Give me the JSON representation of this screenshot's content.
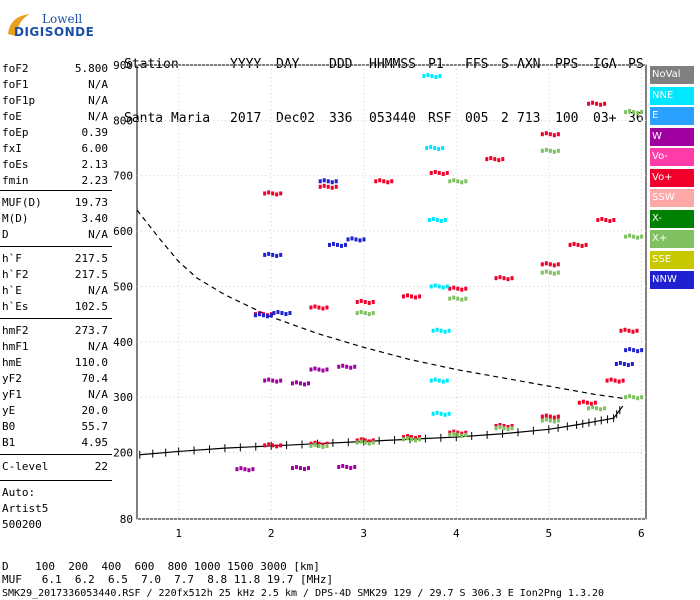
{
  "logo": {
    "line1": "Lowell",
    "line2": "DIGISONDE"
  },
  "header": {
    "row1": [
      "Station",
      "YYYY",
      "DAY",
      "DDD",
      "HHMMSS",
      "P1",
      "FFS",
      "S",
      "AXN",
      "PPS",
      "IGA",
      "PS"
    ],
    "row2": [
      "Santa Maria",
      "2017",
      "Dec02",
      "336",
      "053440",
      "RSF",
      "005",
      "2",
      "713",
      "100",
      "03+",
      "36"
    ]
  },
  "params": {
    "group1": [
      [
        "foF2",
        "5.800"
      ],
      [
        "foF1",
        "N/A"
      ],
      [
        "foF1p",
        "N/A"
      ],
      [
        "foE",
        "N/A"
      ],
      [
        "foEp",
        "0.39"
      ],
      [
        "fxI",
        "6.00"
      ],
      [
        "foEs",
        "2.13"
      ],
      [
        "fmin",
        "2.23"
      ]
    ],
    "group2": [
      [
        "MUF(D)",
        "19.73"
      ],
      [
        "M(D)",
        "3.40"
      ],
      [
        "D",
        "N/A"
      ]
    ],
    "group3": [
      [
        "h`F",
        "217.5"
      ],
      [
        "h`F2",
        "217.5"
      ],
      [
        "h`E",
        "N/A"
      ],
      [
        "h`Es",
        "102.5"
      ]
    ],
    "group4": [
      [
        "hmF2",
        "273.7"
      ],
      [
        "hmF1",
        "N/A"
      ],
      [
        "hmE",
        "110.0"
      ],
      [
        "yF2",
        "70.4"
      ],
      [
        "yF1",
        "N/A"
      ],
      [
        "yE",
        "20.0"
      ],
      [
        "B0",
        "55.7"
      ],
      [
        "B1",
        "4.95"
      ]
    ],
    "group5": [
      [
        "C-level",
        "22"
      ]
    ],
    "auto": [
      "Auto:",
      "Artist5",
      "500200"
    ]
  },
  "legend": [
    {
      "label": "NoVal",
      "color": "#808080"
    },
    {
      "label": "NNE",
      "color": "#00e8ff"
    },
    {
      "label": "E",
      "color": "#2aa0ff"
    },
    {
      "label": "W",
      "color": "#a000a0"
    },
    {
      "label": "Vo-",
      "color": "#ff3ca8"
    },
    {
      "label": "Vo+",
      "color": "#f0002a"
    },
    {
      "label": "SSW",
      "color": "#ffa8a8"
    },
    {
      "label": "X-",
      "color": "#008000"
    },
    {
      "label": "X+",
      "color": "#80c060"
    },
    {
      "label": "SSE",
      "color": "#c8c800"
    },
    {
      "label": "NNW",
      "color": "#2020d0"
    }
  ],
  "footer": {
    "d_row": "D    100  200  400  600  800 1000 1500 3000 [km]",
    "muf_row": "MUF   6.1  6.2  6.5  7.0  7.7  8.8 11.8 19.7 [MHz]",
    "info": "SMK29_2017336053440.RSF / 220fx512h 25 kHz 2.5 km / DPS-4D SMK29 129 / 29.7 S 306.3 E Ion2Png 1.3.20"
  },
  "chart_data": {
    "type": "scatter",
    "title": "",
    "xlabel": "",
    "ylabel": "",
    "xlim": [
      0.55,
      6.05
    ],
    "ylim": [
      80,
      900
    ],
    "xticks": [
      1,
      2,
      3,
      4,
      5,
      6
    ],
    "yticks": [
      80,
      200,
      300,
      400,
      500,
      600,
      700,
      800,
      900
    ],
    "series": [
      {
        "name": "Vo+",
        "color": "#f0002a",
        "points": [
          [
            2.0,
            213
          ],
          [
            2.5,
            216
          ],
          [
            3.0,
            222
          ],
          [
            3.5,
            228
          ],
          [
            4.0,
            236
          ],
          [
            4.5,
            248
          ],
          [
            5.0,
            265
          ],
          [
            5.4,
            290
          ],
          [
            5.7,
            330
          ],
          [
            5.85,
            420
          ],
          [
            1.9,
            450
          ],
          [
            2.5,
            462
          ],
          [
            3.0,
            472
          ],
          [
            3.5,
            482
          ],
          [
            4.0,
            496
          ],
          [
            4.5,
            515
          ],
          [
            5.0,
            540
          ],
          [
            5.3,
            575
          ],
          [
            5.6,
            620
          ],
          [
            2.0,
            668
          ],
          [
            2.6,
            680
          ],
          [
            3.2,
            690
          ],
          [
            3.8,
            705
          ],
          [
            4.4,
            730
          ],
          [
            5.0,
            775
          ],
          [
            5.5,
            830
          ]
        ]
      },
      {
        "name": "X+",
        "color": "#80c060",
        "points": [
          [
            2.5,
            212
          ],
          [
            3.0,
            218
          ],
          [
            3.5,
            224
          ],
          [
            4.0,
            232
          ],
          [
            4.5,
            244
          ],
          [
            5.0,
            258
          ],
          [
            5.5,
            280
          ],
          [
            5.9,
            300
          ],
          [
            3.0,
            452
          ],
          [
            4.0,
            478
          ],
          [
            5.0,
            525
          ],
          [
            5.9,
            590
          ],
          [
            4.0,
            690
          ],
          [
            5.0,
            745
          ],
          [
            5.9,
            815
          ]
        ]
      },
      {
        "name": "NNW",
        "color": "#2020d0",
        "points": [
          [
            2.0,
            557
          ],
          [
            2.7,
            575
          ],
          [
            2.9,
            585
          ],
          [
            1.9,
            448
          ],
          [
            2.1,
            452
          ],
          [
            5.8,
            360
          ],
          [
            5.9,
            385
          ],
          [
            2.6,
            690
          ]
        ]
      },
      {
        "name": "NNE",
        "color": "#00e8ff",
        "points": [
          [
            3.72,
            880
          ],
          [
            3.75,
            750
          ],
          [
            3.78,
            620
          ],
          [
            3.8,
            500
          ],
          [
            3.82,
            420
          ],
          [
            3.8,
            330
          ],
          [
            3.82,
            270
          ]
        ]
      },
      {
        "name": "W",
        "color": "#a000a0",
        "points": [
          [
            1.7,
            170
          ],
          [
            2.3,
            172
          ],
          [
            2.8,
            174
          ],
          [
            2.5,
            350
          ],
          [
            2.8,
            355
          ],
          [
            2.0,
            330
          ],
          [
            2.3,
            325
          ]
        ]
      }
    ],
    "curves": [
      {
        "name": "virtual height profile",
        "style": "solid with ticks",
        "x": [
          0.58,
          1.0,
          1.5,
          2.0,
          2.5,
          3.0,
          3.5,
          4.0,
          4.5,
          5.0,
          5.3,
          5.5,
          5.7,
          5.8
        ],
        "y": [
          196,
          202,
          208,
          212,
          216,
          220,
          224,
          228,
          234,
          242,
          250,
          256,
          262,
          284
        ]
      },
      {
        "name": "MUF curve",
        "style": "dashed",
        "x": [
          0.55,
          0.8,
          1.0,
          1.2,
          1.5,
          2.0,
          2.5,
          3.0,
          3.5,
          4.0,
          4.5,
          5.0,
          5.5,
          5.8
        ],
        "y": [
          638,
          585,
          545,
          515,
          485,
          445,
          415,
          390,
          368,
          350,
          335,
          320,
          305,
          298
        ]
      }
    ]
  }
}
